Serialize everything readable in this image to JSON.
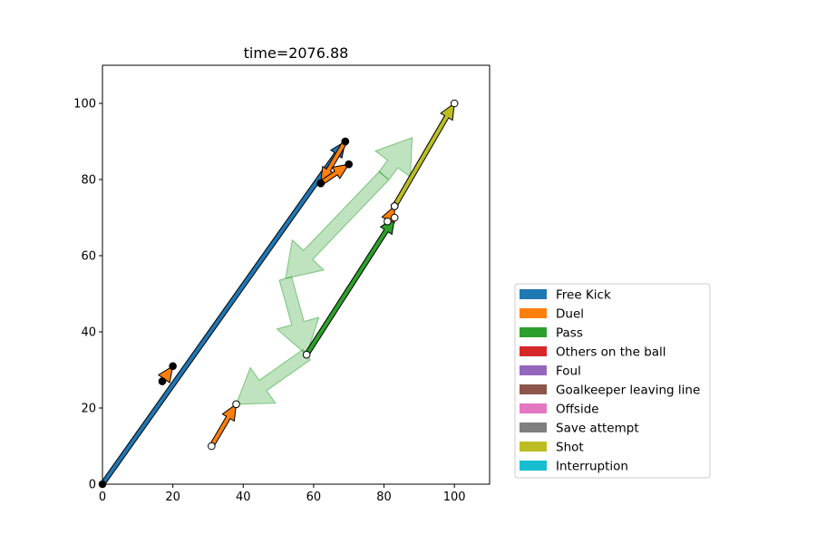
{
  "chart_data": {
    "type": "event-arrows",
    "title": "time=2076.88",
    "xlim": [
      0,
      110
    ],
    "ylim": [
      0,
      110
    ],
    "x_ticks": [
      0,
      20,
      40,
      60,
      80,
      100
    ],
    "y_ticks": [
      0,
      20,
      40,
      60,
      80,
      100
    ],
    "grid": false,
    "legend_position": "lower-right-outside",
    "legend": [
      {
        "label": "Free Kick",
        "color": "#1f77b4"
      },
      {
        "label": "Duel",
        "color": "#ff7f0e"
      },
      {
        "label": "Pass",
        "color": "#2ca02c"
      },
      {
        "label": "Others on the ball",
        "color": "#d62728"
      },
      {
        "label": "Foul",
        "color": "#9467bd"
      },
      {
        "label": "Goalkeeper leaving line",
        "color": "#8c564b"
      },
      {
        "label": "Offside",
        "color": "#e377c2"
      },
      {
        "label": "Save attempt",
        "color": "#7f7f7f"
      },
      {
        "label": "Shot",
        "color": "#bcbd22"
      },
      {
        "label": "Interruption",
        "color": "#17becf"
      }
    ],
    "trajectory": {
      "color": "#2ca02c",
      "alpha": 0.3,
      "points": [
        [
          80,
          81
        ],
        [
          52,
          54
        ],
        [
          58,
          34
        ],
        [
          38,
          21
        ]
      ]
    },
    "events": [
      {
        "type": "Free Kick",
        "from": [
          0,
          0
        ],
        "to": [
          69,
          90
        ],
        "team": "filled"
      },
      {
        "type": "Duel",
        "from": [
          17,
          27
        ],
        "to": [
          20,
          31
        ],
        "team": "filled"
      },
      {
        "type": "Duel",
        "from": [
          69,
          90
        ],
        "to": [
          62,
          79
        ],
        "team": "filled"
      },
      {
        "type": "Duel",
        "from": [
          62,
          79
        ],
        "to": [
          70,
          84
        ],
        "team": "filled"
      },
      {
        "type": "Duel",
        "from": [
          31,
          10
        ],
        "to": [
          38,
          21
        ],
        "team": "hollow"
      },
      {
        "type": "Pass",
        "from": [
          58,
          34
        ],
        "to": [
          83,
          70
        ],
        "team": "hollow"
      },
      {
        "type": "Duel",
        "from": [
          81,
          69
        ],
        "to": [
          83,
          73
        ],
        "team": "hollow"
      },
      {
        "type": "Shot",
        "from": [
          83,
          73
        ],
        "to": [
          100,
          100
        ],
        "team": "hollow"
      }
    ]
  }
}
